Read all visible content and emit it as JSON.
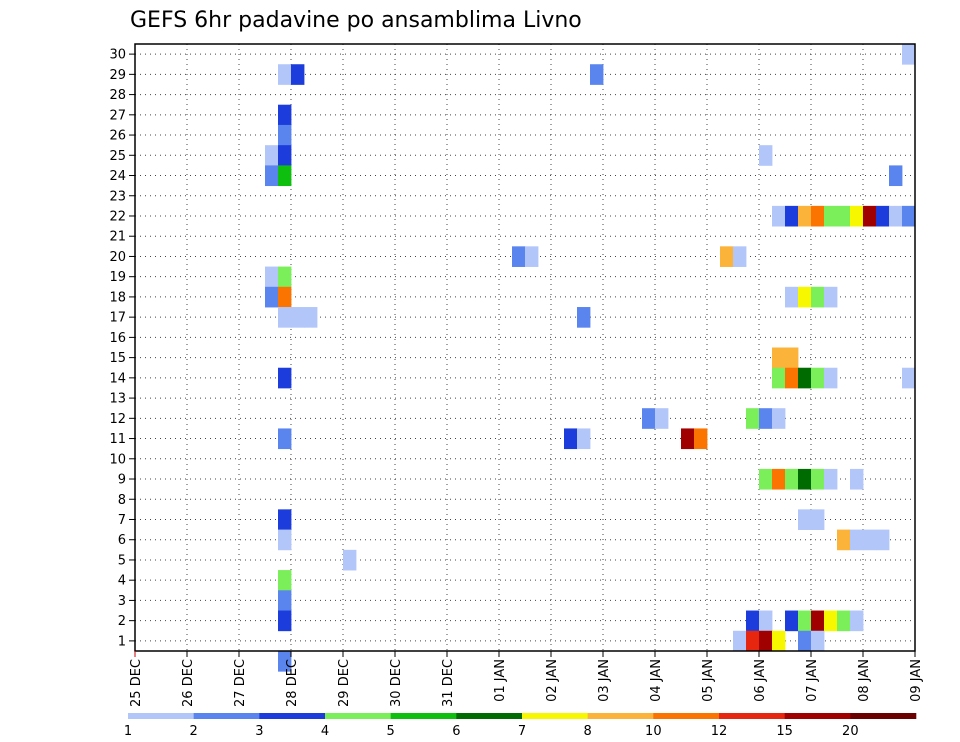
{
  "chart_data": {
    "type": "heatmap",
    "title": "GEFS 6hr padavine po ansamblima Livno",
    "xlabel": "",
    "ylabel": "",
    "x_tick_labels": [
      "25 DEC",
      "26 DEC",
      "27 DEC",
      "28 DEC",
      "29 DEC",
      "30 DEC",
      "31 DEC",
      "01 JAN",
      "02 JAN",
      "03 JAN",
      "04 JAN",
      "05 JAN",
      "06 JAN",
      "07 JAN",
      "08 JAN",
      "09 JAN"
    ],
    "y_tick_labels": [
      "1",
      "2",
      "3",
      "4",
      "5",
      "6",
      "7",
      "8",
      "9",
      "10",
      "11",
      "12",
      "13",
      "14",
      "15",
      "16",
      "17",
      "18",
      "19",
      "20",
      "21",
      "22",
      "23",
      "24",
      "25",
      "26",
      "27",
      "28",
      "29",
      "30"
    ],
    "xlim": [
      0,
      60
    ],
    "ylim": [
      0.5,
      30.5
    ],
    "grid": true,
    "colorbar": {
      "labels": [
        "1",
        "2",
        "3",
        "4",
        "5",
        "6",
        "7",
        "8",
        "10",
        "12",
        "15",
        "20"
      ],
      "colors": [
        "#b3c6fa",
        "#5a84ee",
        "#1c3ddb",
        "#7aef5a",
        "#0fbf0f",
        "#006b00",
        "#f7f700",
        "#fbb33a",
        "#fb7300",
        "#e7260f",
        "#a00000",
        "#6b0000"
      ]
    },
    "cells": [
      {
        "x": 11,
        "member": 29,
        "level": 1
      },
      {
        "x": 12,
        "member": 29,
        "level": 3
      },
      {
        "x": 35,
        "member": 29,
        "level": 2
      },
      {
        "x": 59,
        "member": 30,
        "level": 1
      },
      {
        "x": 11,
        "member": 27,
        "level": 3
      },
      {
        "x": 11,
        "member": 26,
        "level": 2
      },
      {
        "x": 10,
        "member": 25,
        "level": 1
      },
      {
        "x": 11,
        "member": 25,
        "level": 3
      },
      {
        "x": 48,
        "member": 25,
        "level": 1
      },
      {
        "x": 10,
        "member": 24,
        "level": 2
      },
      {
        "x": 11,
        "member": 24,
        "level": 5
      },
      {
        "x": 58,
        "member": 24,
        "level": 2
      },
      {
        "x": 49,
        "member": 22,
        "level": 1
      },
      {
        "x": 50,
        "member": 22,
        "level": 3
      },
      {
        "x": 51,
        "member": 22,
        "level": 8
      },
      {
        "x": 52,
        "member": 22,
        "level": 9
      },
      {
        "x": 53,
        "member": 22,
        "level": 4
      },
      {
        "x": 54,
        "member": 22,
        "level": 4
      },
      {
        "x": 55,
        "member": 22,
        "level": 7
      },
      {
        "x": 56,
        "member": 22,
        "level": 11
      },
      {
        "x": 57,
        "member": 22,
        "level": 3
      },
      {
        "x": 58,
        "member": 22,
        "level": 1
      },
      {
        "x": 59,
        "member": 22,
        "level": 2
      },
      {
        "x": 29,
        "member": 20,
        "level": 2
      },
      {
        "x": 30,
        "member": 20,
        "level": 1
      },
      {
        "x": 45,
        "member": 20,
        "level": 8
      },
      {
        "x": 46,
        "member": 20,
        "level": 1
      },
      {
        "x": 10,
        "member": 19,
        "level": 1
      },
      {
        "x": 11,
        "member": 19,
        "level": 4
      },
      {
        "x": 10,
        "member": 18,
        "level": 2
      },
      {
        "x": 11,
        "member": 18,
        "level": 9
      },
      {
        "x": 50,
        "member": 18,
        "level": 1
      },
      {
        "x": 51,
        "member": 18,
        "level": 7
      },
      {
        "x": 52,
        "member": 18,
        "level": 4
      },
      {
        "x": 53,
        "member": 18,
        "level": 1
      },
      {
        "x": 11,
        "member": 17,
        "level": 1
      },
      {
        "x": 12,
        "member": 17,
        "level": 1
      },
      {
        "x": 13,
        "member": 17,
        "level": 1
      },
      {
        "x": 34,
        "member": 17,
        "level": 2
      },
      {
        "x": 49,
        "member": 15,
        "level": 8
      },
      {
        "x": 50,
        "member": 15,
        "level": 8
      },
      {
        "x": 59,
        "member": 14,
        "level": 1
      },
      {
        "x": 11,
        "member": 14,
        "level": 3
      },
      {
        "x": 49,
        "member": 14,
        "level": 4
      },
      {
        "x": 50,
        "member": 14,
        "level": 9
      },
      {
        "x": 51,
        "member": 14,
        "level": 6
      },
      {
        "x": 52,
        "member": 14,
        "level": 4
      },
      {
        "x": 53,
        "member": 14,
        "level": 1
      },
      {
        "x": 39,
        "member": 12,
        "level": 2
      },
      {
        "x": 40,
        "member": 12,
        "level": 1
      },
      {
        "x": 47,
        "member": 12,
        "level": 4
      },
      {
        "x": 48,
        "member": 12,
        "level": 2
      },
      {
        "x": 49,
        "member": 12,
        "level": 1
      },
      {
        "x": 11,
        "member": 11,
        "level": 2
      },
      {
        "x": 33,
        "member": 11,
        "level": 3
      },
      {
        "x": 34,
        "member": 11,
        "level": 1
      },
      {
        "x": 42,
        "member": 11,
        "level": 11
      },
      {
        "x": 43,
        "member": 11,
        "level": 9
      },
      {
        "x": 48,
        "member": 9,
        "level": 4
      },
      {
        "x": 49,
        "member": 9,
        "level": 9
      },
      {
        "x": 50,
        "member": 9,
        "level": 4
      },
      {
        "x": 51,
        "member": 9,
        "level": 6
      },
      {
        "x": 52,
        "member": 9,
        "level": 4
      },
      {
        "x": 53,
        "member": 9,
        "level": 1
      },
      {
        "x": 55,
        "member": 9,
        "level": 1
      },
      {
        "x": 11,
        "member": 7,
        "level": 3
      },
      {
        "x": 51,
        "member": 7,
        "level": 1
      },
      {
        "x": 52,
        "member": 7,
        "level": 1
      },
      {
        "x": 11,
        "member": 6,
        "level": 1
      },
      {
        "x": 54,
        "member": 6,
        "level": 8
      },
      {
        "x": 55,
        "member": 6,
        "level": 1
      },
      {
        "x": 56,
        "member": 6,
        "level": 1
      },
      {
        "x": 57,
        "member": 6,
        "level": 1
      },
      {
        "x": 16,
        "member": 5,
        "level": 1
      },
      {
        "x": 11,
        "member": 4,
        "level": 4
      },
      {
        "x": 11,
        "member": 3,
        "level": 2
      },
      {
        "x": 11,
        "member": 2,
        "level": 3
      },
      {
        "x": 47,
        "member": 2,
        "level": 3
      },
      {
        "x": 48,
        "member": 2,
        "level": 1
      },
      {
        "x": 50,
        "member": 2,
        "level": 3
      },
      {
        "x": 51,
        "member": 2,
        "level": 4
      },
      {
        "x": 52,
        "member": 2,
        "level": 11
      },
      {
        "x": 53,
        "member": 2,
        "level": 7
      },
      {
        "x": 54,
        "member": 2,
        "level": 4
      },
      {
        "x": 55,
        "member": 2,
        "level": 1
      },
      {
        "x": 46,
        "member": 1,
        "level": 1
      },
      {
        "x": 47,
        "member": 1,
        "level": 10
      },
      {
        "x": 48,
        "member": 1,
        "level": 11
      },
      {
        "x": 49,
        "member": 1,
        "level": 7
      },
      {
        "x": 51,
        "member": 1,
        "level": 2
      },
      {
        "x": 52,
        "member": 1,
        "level": 1
      },
      {
        "x": 11,
        "member": 0,
        "level": 2
      }
    ]
  }
}
